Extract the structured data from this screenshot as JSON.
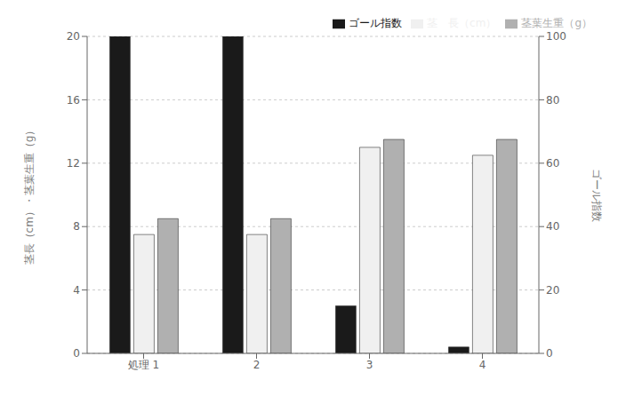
{
  "chart_data": {
    "type": "bar",
    "categories": [
      "処理  1",
      "2",
      "3",
      "4"
    ],
    "ylabel": "茎長（cm）・茎葉生重（g）",
    "y2label": "ゴール指数",
    "ylim": [
      0,
      20
    ],
    "yticks": [
      0,
      4,
      8,
      12,
      16,
      20
    ],
    "y2lim": [
      0,
      100
    ],
    "y2ticks": [
      0,
      20,
      40,
      60,
      80,
      100
    ],
    "grid": true,
    "legend": "upper right",
    "series": [
      {
        "name": "ゴール指数",
        "color": "#1a1a1a",
        "values": [
          100,
          100,
          15,
          2
        ],
        "axis": "y2"
      },
      {
        "name": "茎　長（cm）",
        "color": "#f0f0f0",
        "values": [
          7.5,
          7.5,
          13.0,
          12.5
        ]
      },
      {
        "name": "茎葉生重（g）",
        "color": "#b0b0b0",
        "values": [
          8.5,
          8.5,
          13.5,
          13.5
        ]
      }
    ]
  }
}
